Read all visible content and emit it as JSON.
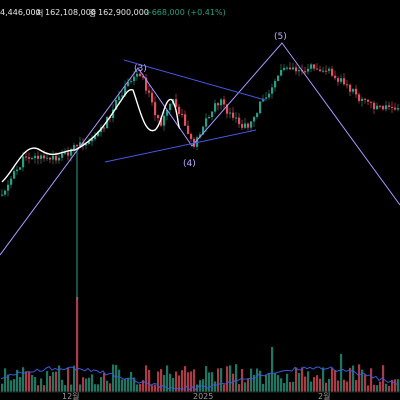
{
  "header": {
    "open_partial": "4,446,000",
    "low_label": "저",
    "low_value": "162,108,000",
    "close_label": "종",
    "close_value": "162,900,000",
    "change": "+668,000 (+0.41%)"
  },
  "x_axis": {
    "labels": [
      "12월",
      "2025",
      "2월"
    ]
  },
  "wave_labels": [
    "(3)",
    "(4)",
    "(5)"
  ],
  "colors": {
    "up": "#2a9d84",
    "down": "#e2515f",
    "wave": "#a99bff",
    "triangle": "#4a57e8",
    "ma": "#ffffff",
    "volume_ma": "#3c5ad6",
    "header_change": "#2a9d84"
  },
  "chart_data": {
    "type": "candlestick",
    "title": "",
    "xlabel": "",
    "ylabel": "",
    "x_ticks": [
      "12월",
      "2025",
      "2월"
    ],
    "last_close": 162900000,
    "last_low": 162108000,
    "last_change": 668000,
    "last_change_pct": 0.41,
    "annotations": [
      "(3)",
      "(4)",
      "(5)"
    ],
    "grid": false
  }
}
